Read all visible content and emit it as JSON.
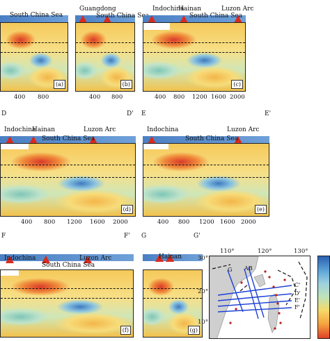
{
  "panels": {
    "a": {
      "tag": "(a)",
      "region": "South China Sea",
      "ticks": [
        "400",
        "800"
      ]
    },
    "b": {
      "tag": "(b)",
      "region1": "Guangdong",
      "region2": "South China Sea",
      "ticks": [
        "400",
        "800"
      ]
    },
    "c": {
      "tag": "(c)",
      "region1": "Indochina",
      "region2": "Hainan",
      "region3": "South China Sea",
      "region4": "Luzon Arc",
      "ticks": [
        "400",
        "800",
        "1200",
        "1600",
        "2000"
      ]
    },
    "d": {
      "tag": "(d)",
      "start": "D",
      "end": "D'",
      "region1": "Indochina",
      "region2": "Hainan",
      "region3": "South China Sea",
      "region4": "Luzon Arc",
      "ticks": [
        "400",
        "800",
        "1200",
        "1600",
        "2000"
      ]
    },
    "e": {
      "tag": "(e)",
      "start": "E",
      "end": "E'",
      "region1": "Indochina",
      "region2": "South China Sea",
      "region3": "Luzon Arc",
      "ticks": [
        "400",
        "800",
        "1200",
        "1600",
        "2000"
      ]
    },
    "f": {
      "tag": "(f)",
      "start": "F",
      "end": "F'",
      "region1": "Indochina",
      "region2": "South China Sea",
      "region3": "Luzon Arc"
    },
    "g": {
      "tag": "(g)",
      "start": "G",
      "end": "G'",
      "region1": "Hainan"
    }
  },
  "map": {
    "lon_labels": [
      "110°",
      "120°",
      "130°"
    ],
    "lat_labels": [
      "30°",
      "20°",
      "10°"
    ],
    "profile_labels": [
      "G",
      "AB",
      "C'",
      "D'",
      "E'",
      "F'"
    ]
  },
  "colors": {
    "volcano": "#d92b1e",
    "topo": "#4a7fc4"
  }
}
